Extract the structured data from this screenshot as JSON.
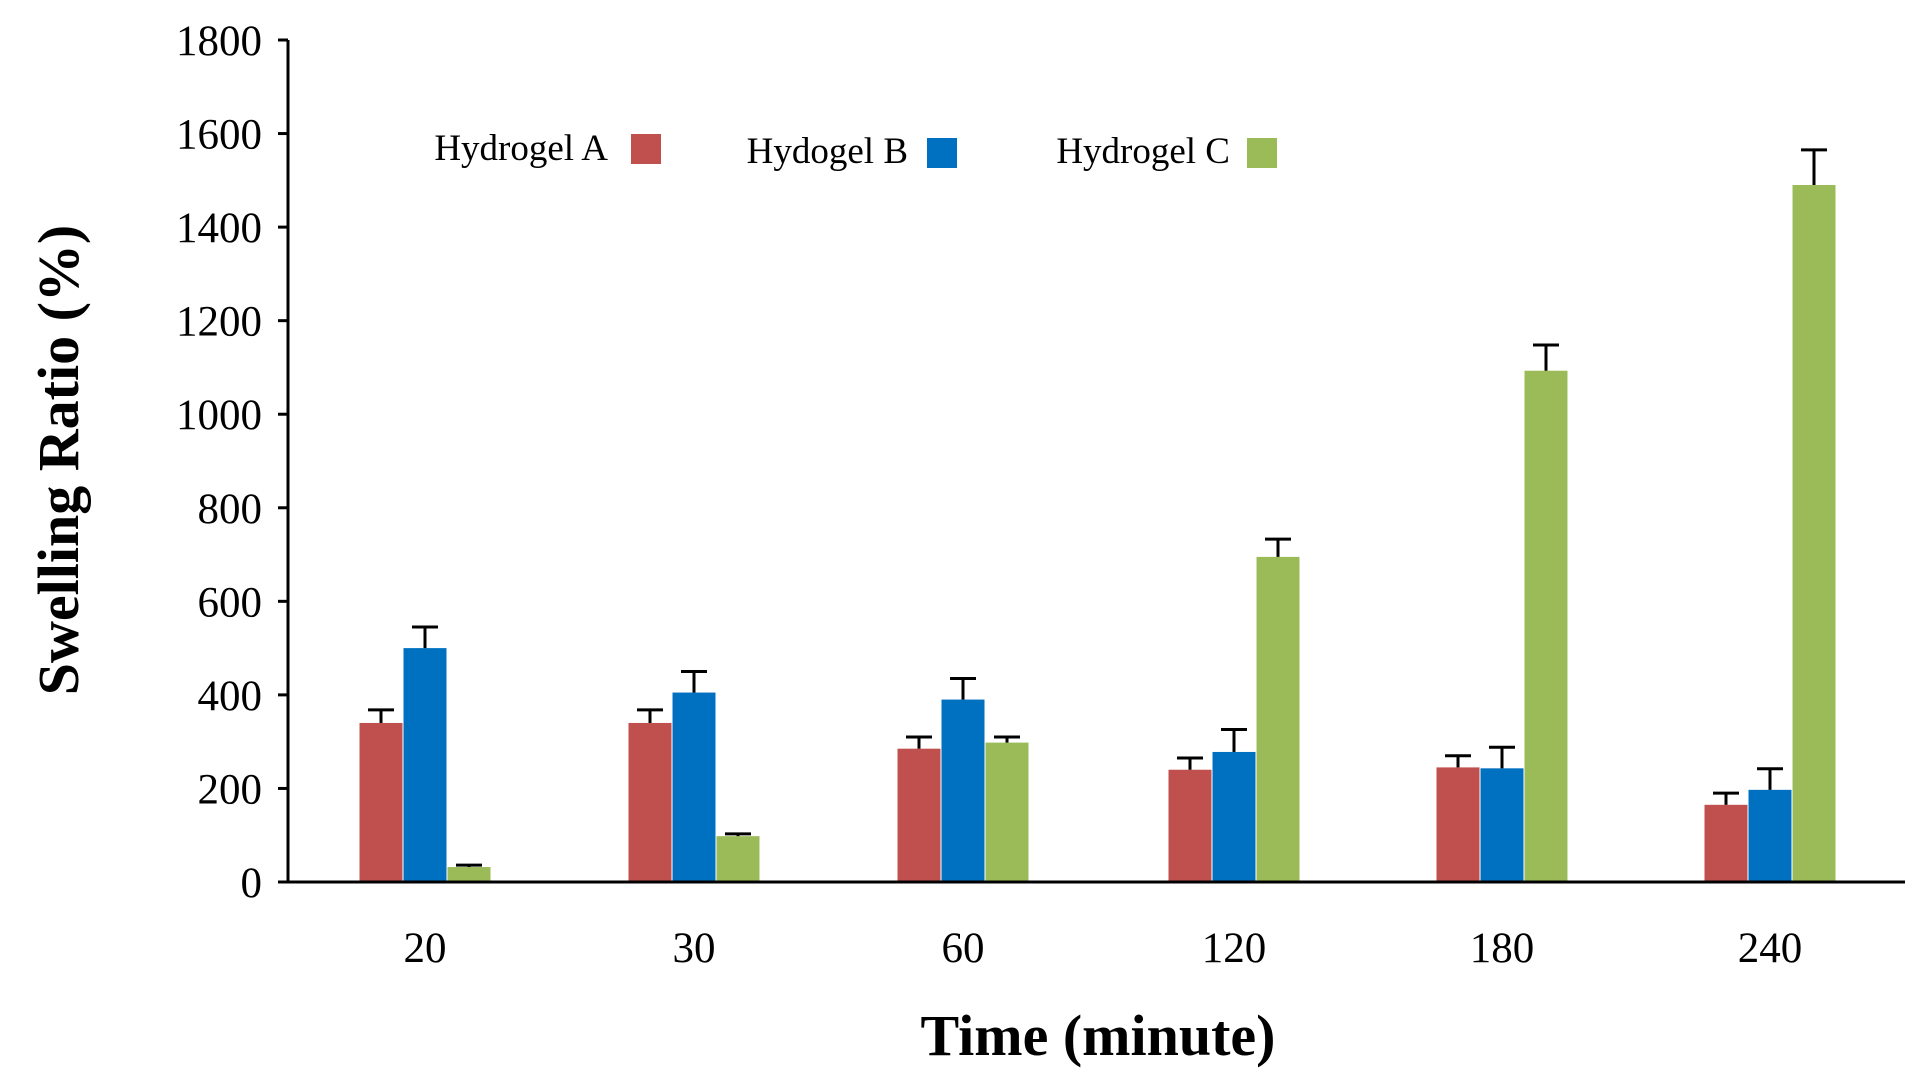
{
  "chart_data": {
    "type": "bar",
    "title": "",
    "xlabel": "Time (minute)",
    "ylabel": "Swelling Ratio (%)",
    "ylim": [
      0,
      1800
    ],
    "yticks": [
      0,
      200,
      400,
      600,
      800,
      1000,
      1200,
      1400,
      1600,
      1800
    ],
    "categories": [
      "20",
      "30",
      "60",
      "120",
      "180",
      "240"
    ],
    "grid": false,
    "legend_position": "top-left",
    "series": [
      {
        "name": "Hydrogel A",
        "color": "#c0504d",
        "values": [
          340,
          340,
          285,
          240,
          245,
          165
        ],
        "errors": [
          28,
          28,
          25,
          25,
          25,
          25
        ]
      },
      {
        "name": "Hydogel B",
        "color": "#0070c0",
        "values": [
          500,
          405,
          390,
          278,
          243,
          197
        ],
        "errors": [
          45,
          45,
          45,
          48,
          45,
          45
        ]
      },
      {
        "name": "Hydrogel C",
        "color": "#9bbb59",
        "values": [
          32,
          98,
          298,
          695,
          1093,
          1490
        ],
        "errors": [
          4,
          5,
          12,
          38,
          55,
          75
        ]
      }
    ]
  }
}
